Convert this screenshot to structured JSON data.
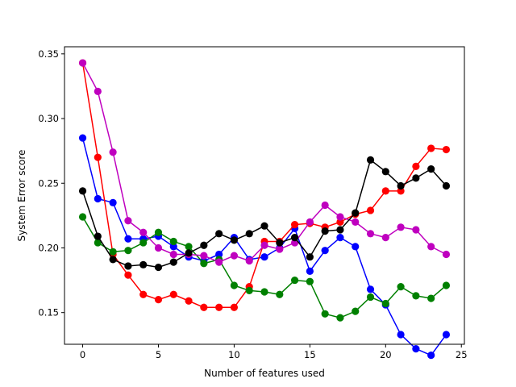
{
  "chart_data": {
    "type": "line",
    "title": "",
    "xlabel": "Number of features used",
    "ylabel": "System Error score",
    "xlim": [
      -1.2,
      25.2
    ],
    "ylim": [
      0.1255,
      0.3555
    ],
    "xticks": [
      0,
      5,
      10,
      15,
      20,
      25
    ],
    "yticks": [
      0.15,
      0.2,
      0.25,
      0.3,
      0.35
    ],
    "xtick_labels": [
      "0",
      "5",
      "10",
      "15",
      "20",
      "25"
    ],
    "ytick_labels": [
      "0.15",
      "0.20",
      "0.25",
      "0.30",
      "0.35"
    ],
    "grid": false,
    "legend": "none",
    "x": [
      0,
      1,
      2,
      3,
      4,
      5,
      6,
      7,
      8,
      9,
      10,
      11,
      12,
      13,
      14,
      15,
      16,
      17,
      18,
      19,
      20,
      21,
      22,
      23,
      24
    ],
    "series": [
      {
        "color": "#0000ff",
        "values": [
          0.285,
          0.238,
          0.235,
          0.207,
          0.207,
          0.209,
          0.201,
          0.193,
          0.19,
          0.195,
          0.208,
          0.191,
          0.193,
          0.2,
          0.215,
          0.182,
          0.198,
          0.208,
          0.201,
          0.168,
          0.156,
          0.133,
          0.122,
          0.117,
          0.133
        ]
      },
      {
        "color": "#ff0000",
        "values": [
          0.343,
          0.27,
          0.195,
          0.179,
          0.164,
          0.16,
          0.164,
          0.159,
          0.154,
          0.154,
          0.154,
          0.17,
          0.205,
          0.205,
          0.218,
          0.219,
          0.216,
          0.22,
          0.226,
          0.229,
          0.244,
          0.244,
          0.263,
          0.277,
          0.276
        ]
      },
      {
        "color": "#008000",
        "values": [
          0.224,
          0.204,
          0.197,
          0.198,
          0.204,
          0.212,
          0.205,
          0.201,
          0.188,
          0.191,
          0.171,
          0.167,
          0.166,
          0.164,
          0.175,
          0.174,
          0.149,
          0.146,
          0.151,
          0.162,
          0.157,
          0.17,
          0.163,
          0.161,
          0.171
        ]
      },
      {
        "color": "#bf00bf",
        "values": [
          0.343,
          0.321,
          0.274,
          0.221,
          0.212,
          0.2,
          0.195,
          0.195,
          0.194,
          0.189,
          0.194,
          0.19,
          0.202,
          0.199,
          0.204,
          0.22,
          0.233,
          0.224,
          0.22,
          0.211,
          0.208,
          0.216,
          0.214,
          0.201,
          0.195
        ]
      },
      {
        "color": "#000000",
        "values": [
          0.244,
          0.209,
          0.191,
          0.186,
          0.187,
          0.185,
          0.189,
          0.196,
          0.202,
          0.211,
          0.206,
          0.211,
          0.217,
          0.204,
          0.208,
          0.193,
          0.213,
          0.214,
          0.227,
          0.268,
          0.259,
          0.248,
          0.254,
          0.261,
          0.248
        ]
      }
    ]
  }
}
